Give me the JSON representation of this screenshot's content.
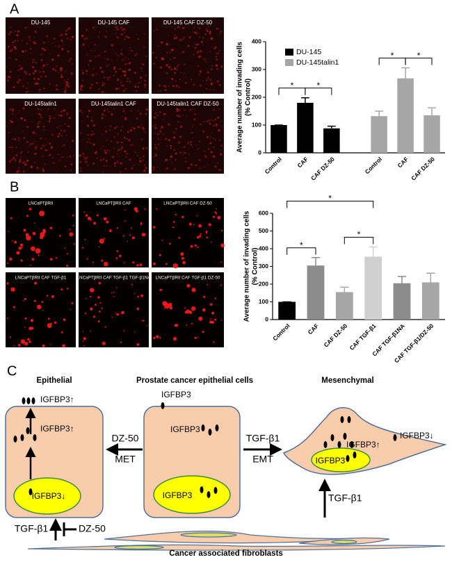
{
  "panels": {
    "a": "A",
    "b": "B",
    "c": "C"
  },
  "images_a": [
    "DU-145",
    "DU-145 CAF",
    "DU-145 CAF DZ-50",
    "DU-145talin1",
    "DU-145talin1 CAF",
    "DU-145talin1 CAF DZ-50"
  ],
  "images_b": [
    "LNCaPTβRII",
    "LNCaPTβRII CAF",
    "LNCaPTβRII CAF DZ-50",
    "LNCaPTβRII CAF TGF-β1",
    "LNCaPTβRII CAF TGF-β1 TGF-β1NA",
    "LNCaPTβRII CAF TGF-β1 DZ-50"
  ],
  "chart_data": [
    {
      "type": "bar",
      "y_label": [
        "Average number of invading cells",
        "(% Control)"
      ],
      "ylim": [
        0,
        400
      ],
      "yticks": [
        0,
        100,
        200,
        300,
        400
      ],
      "series": [
        {
          "name": "DU-145",
          "color": "#000000",
          "categories": [
            "Control",
            "CAF",
            "CAF DZ-50"
          ],
          "values": [
            100,
            180,
            88
          ],
          "errors": [
            0,
            18,
            8
          ]
        },
        {
          "name": "DU-145talin1",
          "color": "#a6a6a6",
          "categories": [
            "Control",
            "CAF",
            "CAF DZ-50"
          ],
          "values": [
            132,
            268,
            135
          ],
          "errors": [
            18,
            38,
            27
          ]
        }
      ],
      "significance": [
        {
          "series": 0,
          "from": 0,
          "to": 1,
          "label": "*"
        },
        {
          "series": 0,
          "from": 1,
          "to": 2,
          "label": "*"
        },
        {
          "series": 1,
          "from": 0,
          "to": 1,
          "label": "*"
        },
        {
          "series": 1,
          "from": 1,
          "to": 2,
          "label": "*"
        }
      ]
    },
    {
      "type": "bar",
      "y_label": [
        "Average number of invading cells",
        "(% Control)"
      ],
      "ylim": [
        0,
        600
      ],
      "yticks": [
        0,
        100,
        200,
        300,
        400,
        500,
        600
      ],
      "categories": [
        "Control",
        "CAF",
        "CAF DZ-50",
        "CAF TGF-β1",
        "CAF TGF-β1NA",
        "CAF TGF-β1/DZ-50"
      ],
      "values": [
        100,
        305,
        155,
        355,
        205,
        210
      ],
      "errors": [
        0,
        45,
        28,
        55,
        38,
        52
      ],
      "colors": [
        "#000000",
        "#8c8c8c",
        "#a6a6a6",
        "#d0d0d0",
        "#8c8c8c",
        "#a6a6a6"
      ],
      "significance": [
        {
          "from": 0,
          "to": 1,
          "label": "*"
        },
        {
          "from": 2,
          "to": 3,
          "label": "*"
        },
        {
          "from": 0,
          "to": 3,
          "label": "*"
        }
      ]
    }
  ],
  "diagram": {
    "epithelial": "Epithelial",
    "prostate": "Prostate cancer epithelial cells",
    "mesenchymal": "Mesenchymal",
    "epi_top": "IGFBP3↑",
    "epi_mid": "IGFBP3↑",
    "epi_nucleus": "IGFBP3↓",
    "pro_top": "IGFBP3",
    "pro_mid": "IGFBP3",
    "pro_nucleus": "IGFBP3",
    "met_drug": "DZ-50",
    "met": "MET",
    "emt_factor": "TGF-β1",
    "emt": "EMT",
    "mes_mid": "IGFBP3↑",
    "mes_nucleus": "IGFBP3",
    "mes_right": "IGFBP3↓",
    "caf_to_mes": "TGF-β1",
    "caf_to_epi": "TGF-β1",
    "inhibitor": "DZ-50",
    "fibroblasts": "Cancer associated fibroblasts"
  }
}
